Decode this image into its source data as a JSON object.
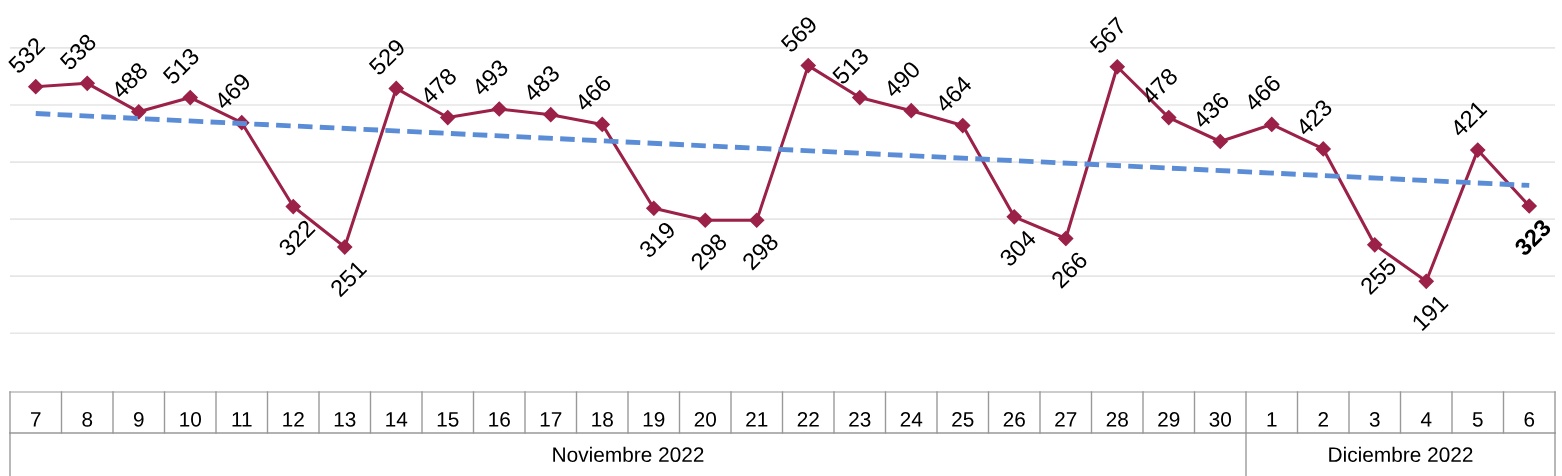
{
  "chart_data": {
    "type": "line",
    "x": [
      "2022-11-07",
      "2022-11-08",
      "2022-11-09",
      "2022-11-10",
      "2022-11-11",
      "2022-11-12",
      "2022-11-13",
      "2022-11-14",
      "2022-11-15",
      "2022-11-16",
      "2022-11-17",
      "2022-11-18",
      "2022-11-19",
      "2022-11-20",
      "2022-11-21",
      "2022-11-22",
      "2022-11-23",
      "2022-11-24",
      "2022-11-25",
      "2022-11-26",
      "2022-11-27",
      "2022-11-28",
      "2022-11-29",
      "2022-11-30",
      "2022-12-01",
      "2022-12-02",
      "2022-12-03",
      "2022-12-04",
      "2022-12-05",
      "2022-12-06"
    ],
    "xlim": [
      "2022-11-06T12:00",
      "2022-12-06T12:00"
    ],
    "xticks": [
      {
        "value": "2022-11-07",
        "label": "7"
      },
      {
        "value": "2022-11-08",
        "label": "8"
      },
      {
        "value": "2022-11-09",
        "label": "9"
      },
      {
        "value": "2022-11-10",
        "label": "10"
      },
      {
        "value": "2022-11-11",
        "label": "11"
      },
      {
        "value": "2022-11-12",
        "label": "12"
      },
      {
        "value": "2022-11-13",
        "label": "13"
      },
      {
        "value": "2022-11-14",
        "label": "14"
      },
      {
        "value": "2022-11-15",
        "label": "15"
      },
      {
        "value": "2022-11-16",
        "label": "16"
      },
      {
        "value": "2022-11-17",
        "label": "17"
      },
      {
        "value": "2022-11-18",
        "label": "18"
      },
      {
        "value": "2022-11-19",
        "label": "19"
      },
      {
        "value": "2022-11-20",
        "label": "20"
      },
      {
        "value": "2022-11-21",
        "label": "21"
      },
      {
        "value": "2022-11-22",
        "label": "22"
      },
      {
        "value": "2022-11-23",
        "label": "23"
      },
      {
        "value": "2022-11-24",
        "label": "24"
      },
      {
        "value": "2022-11-25",
        "label": "25"
      },
      {
        "value": "2022-11-26",
        "label": "26"
      },
      {
        "value": "2022-11-27",
        "label": "27"
      },
      {
        "value": "2022-11-28",
        "label": "28"
      },
      {
        "value": "2022-11-29",
        "label": "29"
      },
      {
        "value": "2022-11-30",
        "label": "30"
      },
      {
        "value": "2022-12-01",
        "label": "1"
      },
      {
        "value": "2022-12-02",
        "label": "2"
      },
      {
        "value": "2022-12-03",
        "label": "3"
      },
      {
        "value": "2022-12-04",
        "label": "4"
      },
      {
        "value": "2022-12-05",
        "label": "5"
      },
      {
        "value": "2022-12-06",
        "label": "6"
      }
    ],
    "series": [
      {
        "color": "#9b2148",
        "marker": "diamond",
        "line_style": "solid",
        "values": [
          532,
          538,
          488,
          513,
          469,
          322,
          251,
          529,
          478,
          493,
          483,
          466,
          319,
          298,
          298,
          569,
          513,
          490,
          464,
          304,
          266,
          567,
          478,
          436,
          466,
          423,
          255,
          191,
          421,
          323
        ],
        "value_labels": [
          "532",
          "538",
          "488",
          "513",
          "469",
          "322",
          "251",
          "529",
          "478",
          "493",
          "483",
          "466",
          "319",
          "298",
          "298",
          "569",
          "513",
          "490",
          "464",
          "304",
          "266",
          "567",
          "478",
          "436",
          "466",
          "423",
          "255",
          "191",
          "421",
          "323"
        ]
      },
      {
        "color": "#5b8dd6",
        "marker": "none",
        "line_style": "dashed",
        "x": [
          "2022-11-07",
          "2022-12-06"
        ],
        "values": [
          485,
          359
        ]
      }
    ],
    "yticks": [
      {
        "value": 100,
        "label": null
      },
      {
        "value": 200,
        "label": null
      },
      {
        "value": 300,
        "label": null
      },
      {
        "value": 400,
        "label": null
      },
      {
        "value": 500,
        "label": null
      },
      {
        "value": 600,
        "label": null
      }
    ],
    "grid": "y",
    "annotations": [
      "Noviembre 2022",
      "Diciembre 2022"
    ]
  }
}
